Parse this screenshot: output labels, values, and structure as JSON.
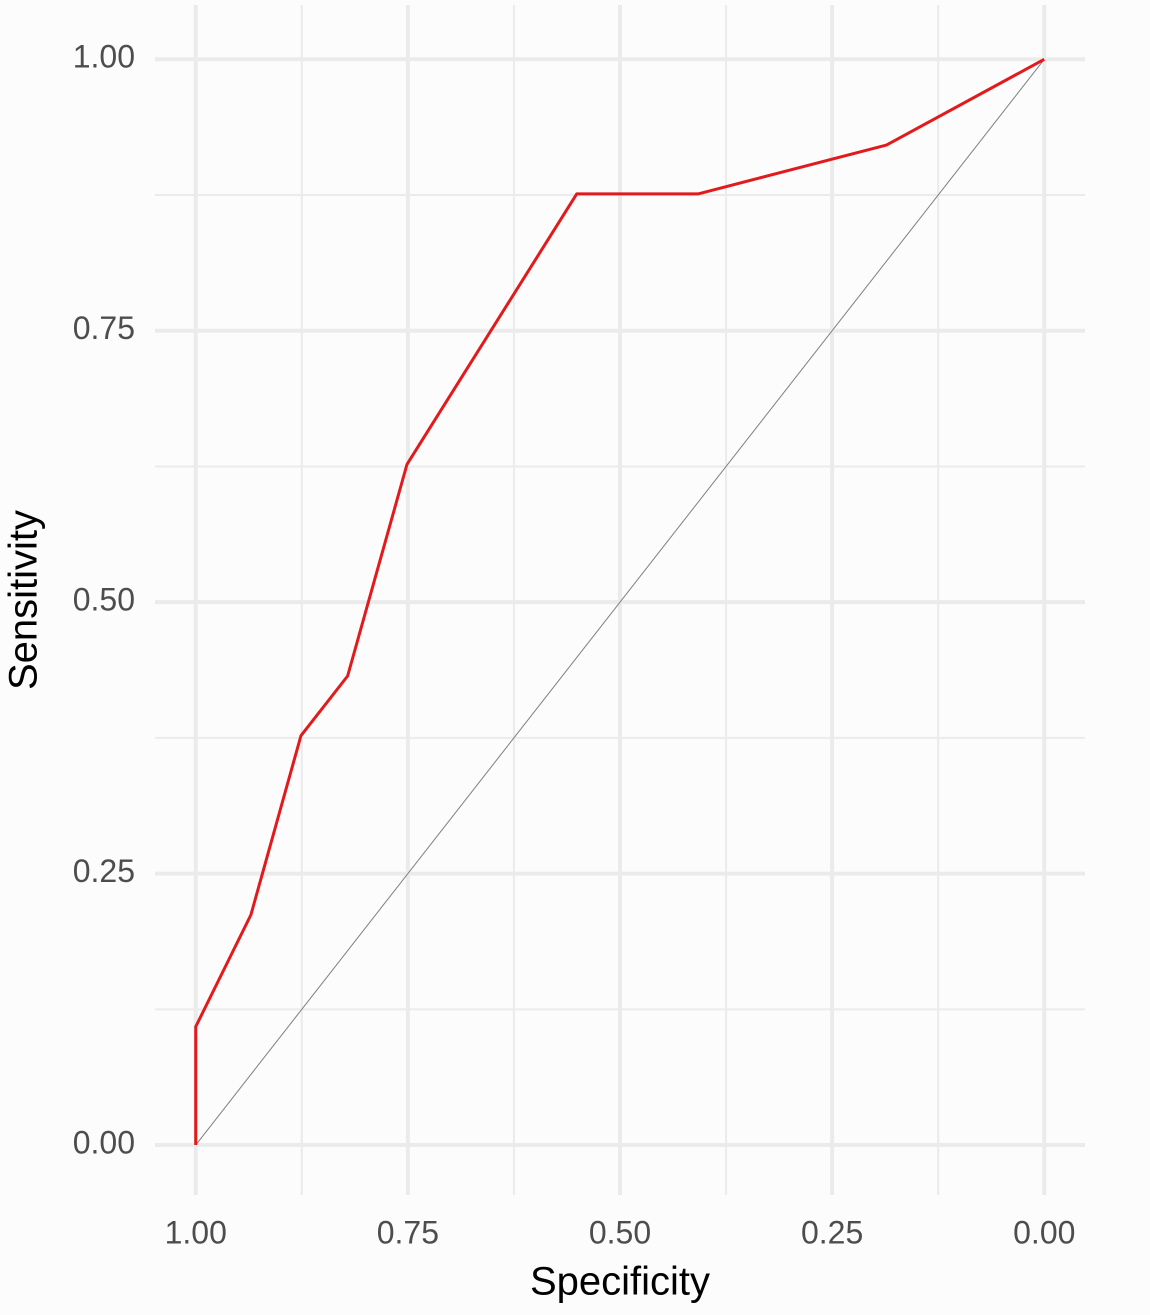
{
  "chart_data": {
    "type": "line",
    "x_label": "Specificity",
    "y_label": "Sensitivity",
    "x": [
      1.0,
      1.0,
      0.935,
      0.876,
      0.821,
      0.751,
      0.551,
      0.408,
      0.186,
      0.0
    ],
    "values": [
      0.0,
      0.109,
      0.212,
      0.377,
      0.432,
      0.627,
      0.876,
      0.876,
      0.921,
      1.0
    ],
    "color": "#e31a1c",
    "xlim": [
      1.048,
      -0.048
    ],
    "xticks": [
      {
        "value": 1,
        "label": "1.00"
      },
      {
        "value": 0.75,
        "label": "0.75"
      },
      {
        "value": 0.5,
        "label": "0.50"
      },
      {
        "value": 0.25,
        "label": "0.25"
      },
      {
        "value": 0,
        "label": "0.00"
      }
    ],
    "ylim": [
      -0.046,
      1.05
    ],
    "yticks": [
      {
        "value": 0,
        "label": "0.00"
      },
      {
        "value": 0.25,
        "label": "0.25"
      },
      {
        "value": 0.5,
        "label": "0.50"
      },
      {
        "value": 0.75,
        "label": "0.75"
      },
      {
        "value": 1,
        "label": "1.00"
      }
    ],
    "grid": true,
    "minor_grid": true,
    "reference_line": true
  }
}
